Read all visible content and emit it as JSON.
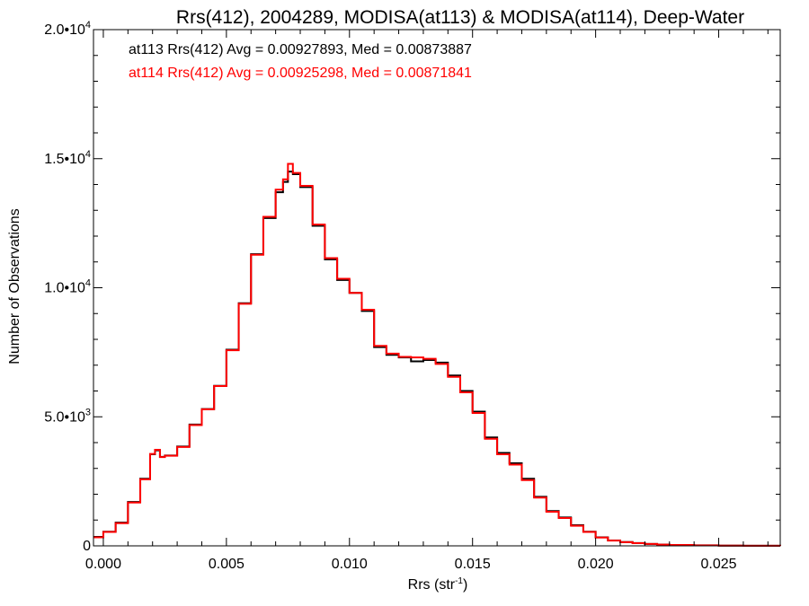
{
  "chart_data": {
    "type": "line",
    "step": true,
    "title": "Rrs(412), 2004289, MODISA(at113) & MODISA(at114), Deep-Water",
    "xlabel": "Rrs (str",
    "xlabel_sup": "-1",
    "xlabel_tail": ")",
    "ylabel": "Number of Observations",
    "xlim": [
      -0.0004,
      0.0275
    ],
    "ylim": [
      0,
      20000
    ],
    "x_ticks": [
      {
        "value": 0.0,
        "label": "0.000"
      },
      {
        "value": 0.005,
        "label": "0.005"
      },
      {
        "value": 0.01,
        "label": "0.010"
      },
      {
        "value": 0.015,
        "label": "0.015"
      },
      {
        "value": 0.02,
        "label": "0.020"
      },
      {
        "value": 0.025,
        "label": "0.025"
      }
    ],
    "y_ticks": [
      {
        "value": 0,
        "label": "0",
        "exp": ""
      },
      {
        "value": 5000,
        "label": "5.0•10",
        "exp": "3"
      },
      {
        "value": 10000,
        "label": "1.0•10",
        "exp": "4"
      },
      {
        "value": 15000,
        "label": "1.5•10",
        "exp": "4"
      },
      {
        "value": 20000,
        "label": "2.0•10",
        "exp": "4"
      }
    ],
    "grid": false,
    "annotations": [
      {
        "text": "at113 Rrs(412) Avg = 0.00927893, Med = 0.00873887",
        "color": "#000000"
      },
      {
        "text": "at114 Rrs(412) Avg = 0.00925298, Med = 0.00871841",
        "color": "#ff0000"
      }
    ],
    "series": [
      {
        "color": "#000000",
        "x": [
          -0.0004,
          0.0,
          0.0005,
          0.001,
          0.0015,
          0.0019,
          0.0021,
          0.0023,
          0.0025,
          0.003,
          0.0035,
          0.004,
          0.0045,
          0.005,
          0.0055,
          0.006,
          0.0065,
          0.007,
          0.0073,
          0.0075,
          0.0077,
          0.008,
          0.0085,
          0.009,
          0.0095,
          0.01,
          0.0105,
          0.011,
          0.0115,
          0.012,
          0.0125,
          0.013,
          0.0135,
          0.014,
          0.0145,
          0.015,
          0.0155,
          0.016,
          0.0165,
          0.017,
          0.0175,
          0.018,
          0.0185,
          0.019,
          0.0195,
          0.02,
          0.0205,
          0.021,
          0.0215,
          0.022,
          0.0225,
          0.023,
          0.024,
          0.025,
          0.026,
          0.0275
        ],
        "y": [
          350,
          550,
          900,
          1700,
          2600,
          3550,
          3700,
          3450,
          3500,
          3850,
          4700,
          5300,
          6200,
          7600,
          9400,
          11300,
          12700,
          13700,
          14100,
          14500,
          14400,
          13900,
          12400,
          11100,
          10300,
          9800,
          9100,
          7700,
          7400,
          7300,
          7150,
          7200,
          7100,
          6600,
          6000,
          5200,
          4200,
          3600,
          3200,
          2600,
          1900,
          1350,
          1100,
          800,
          550,
          330,
          210,
          150,
          110,
          75,
          50,
          35,
          20,
          10,
          5,
          2
        ]
      },
      {
        "color": "#ff0000",
        "x": [
          -0.0004,
          0.0,
          0.0005,
          0.001,
          0.0015,
          0.0019,
          0.0021,
          0.0023,
          0.0025,
          0.003,
          0.0035,
          0.004,
          0.0045,
          0.005,
          0.0055,
          0.006,
          0.0065,
          0.007,
          0.0073,
          0.0075,
          0.0077,
          0.008,
          0.0085,
          0.009,
          0.0095,
          0.01,
          0.0105,
          0.011,
          0.0115,
          0.012,
          0.0125,
          0.013,
          0.0135,
          0.014,
          0.0145,
          0.015,
          0.0155,
          0.016,
          0.0165,
          0.017,
          0.0175,
          0.018,
          0.0185,
          0.019,
          0.0195,
          0.02,
          0.0205,
          0.021,
          0.0215,
          0.022,
          0.0225,
          0.023,
          0.024,
          0.025,
          0.026,
          0.0275
        ],
        "y": [
          330,
          540,
          880,
          1680,
          2580,
          3560,
          3720,
          3440,
          3490,
          3830,
          4680,
          5290,
          6190,
          7580,
          9380,
          11280,
          12750,
          13800,
          14200,
          14800,
          14450,
          13950,
          12450,
          11150,
          10350,
          9800,
          9150,
          7750,
          7450,
          7320,
          7300,
          7250,
          7050,
          6550,
          5950,
          5150,
          4150,
          3550,
          3150,
          2550,
          1870,
          1320,
          1080,
          780,
          540,
          320,
          205,
          145,
          105,
          72,
          48,
          33,
          19,
          9,
          4,
          2
        ]
      }
    ]
  }
}
